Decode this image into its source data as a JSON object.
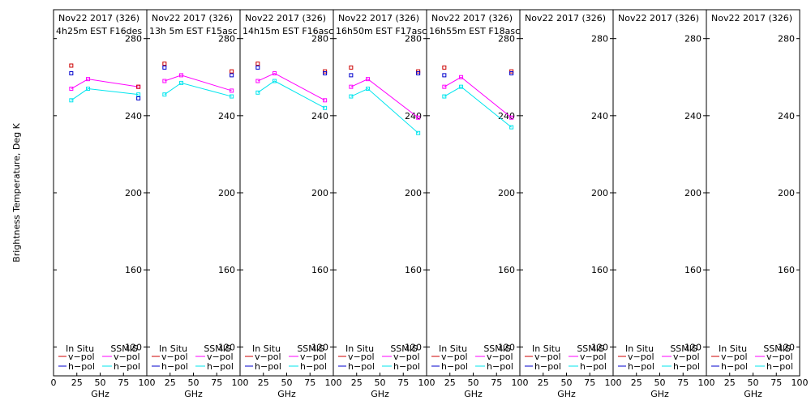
{
  "chart_data": {
    "type": "line",
    "ylabel": "Brightness Temperature, Deg K",
    "xlabel": "GHz",
    "ylim": [
      105,
      295
    ],
    "xlim": [
      0,
      100
    ],
    "yticks": [
      120,
      160,
      200,
      240,
      280
    ],
    "xticks": [
      0,
      25,
      50,
      75,
      100
    ],
    "xtick_labels_first": [
      "0",
      "25",
      "50",
      "75",
      "100"
    ],
    "xtick_labels_other": [
      "25",
      "50",
      "75",
      "100"
    ],
    "legend": {
      "in_situ_title": "In Situ",
      "ssmis_title": "SSMIS",
      "vpol": "v−pol",
      "hpol": "h−pol"
    },
    "colors": {
      "insitu_v": "#cc0000",
      "insitu_h": "#0000cc",
      "ssmis_v": "#ff00ff",
      "ssmis_h": "#00e5ee"
    },
    "panels": [
      {
        "title1": "Nov22 2017 (326)",
        "title2": "4h25m  EST  F16des",
        "insitu_v": [
          [
            19,
            266
          ],
          [
            91,
            255
          ]
        ],
        "insitu_h": [
          [
            19,
            262
          ],
          [
            91,
            249
          ]
        ],
        "ssmis_v": [
          [
            19,
            254
          ],
          [
            37,
            259
          ],
          [
            91,
            255
          ]
        ],
        "ssmis_h": [
          [
            19,
            248
          ],
          [
            37,
            254
          ],
          [
            91,
            251
          ]
        ]
      },
      {
        "title1": "Nov22 2017 (326)",
        "title2": "13h 5m  EST  F15asc",
        "insitu_v": [
          [
            19,
            267
          ],
          [
            91,
            263
          ]
        ],
        "insitu_h": [
          [
            19,
            265
          ],
          [
            91,
            261
          ]
        ],
        "ssmis_v": [
          [
            19,
            258
          ],
          [
            37,
            261
          ],
          [
            91,
            253
          ]
        ],
        "ssmis_h": [
          [
            19,
            251
          ],
          [
            37,
            257
          ],
          [
            91,
            250
          ]
        ]
      },
      {
        "title1": "Nov22 2017 (326)",
        "title2": "14h15m  EST  F16asc",
        "insitu_v": [
          [
            19,
            267
          ],
          [
            91,
            263
          ]
        ],
        "insitu_h": [
          [
            19,
            265
          ],
          [
            91,
            262
          ]
        ],
        "ssmis_v": [
          [
            19,
            258
          ],
          [
            37,
            262
          ],
          [
            91,
            248
          ]
        ],
        "ssmis_h": [
          [
            19,
            252
          ],
          [
            37,
            258
          ],
          [
            91,
            244
          ]
        ]
      },
      {
        "title1": "Nov22 2017 (326)",
        "title2": "16h50m  EST  F17asc",
        "insitu_v": [
          [
            19,
            265
          ],
          [
            91,
            263
          ]
        ],
        "insitu_h": [
          [
            19,
            261
          ],
          [
            91,
            262
          ]
        ],
        "ssmis_v": [
          [
            19,
            255
          ],
          [
            37,
            259
          ],
          [
            91,
            239
          ]
        ],
        "ssmis_h": [
          [
            19,
            250
          ],
          [
            37,
            254
          ],
          [
            91,
            231
          ]
        ]
      },
      {
        "title1": "Nov22 2017 (326)",
        "title2": "16h55m  EST  F18asc",
        "insitu_v": [
          [
            19,
            265
          ],
          [
            91,
            263
          ]
        ],
        "insitu_h": [
          [
            19,
            261
          ],
          [
            91,
            262
          ]
        ],
        "ssmis_v": [
          [
            19,
            255
          ],
          [
            37,
            260
          ],
          [
            91,
            239
          ]
        ],
        "ssmis_h": [
          [
            19,
            250
          ],
          [
            37,
            255
          ],
          [
            91,
            234
          ]
        ]
      },
      {
        "title1": "Nov22 2017 (326)",
        "title2": ""
      },
      {
        "title1": "Nov22 2017 (326)",
        "title2": ""
      },
      {
        "title1": "Nov22 2017 (326)",
        "title2": ""
      }
    ]
  }
}
